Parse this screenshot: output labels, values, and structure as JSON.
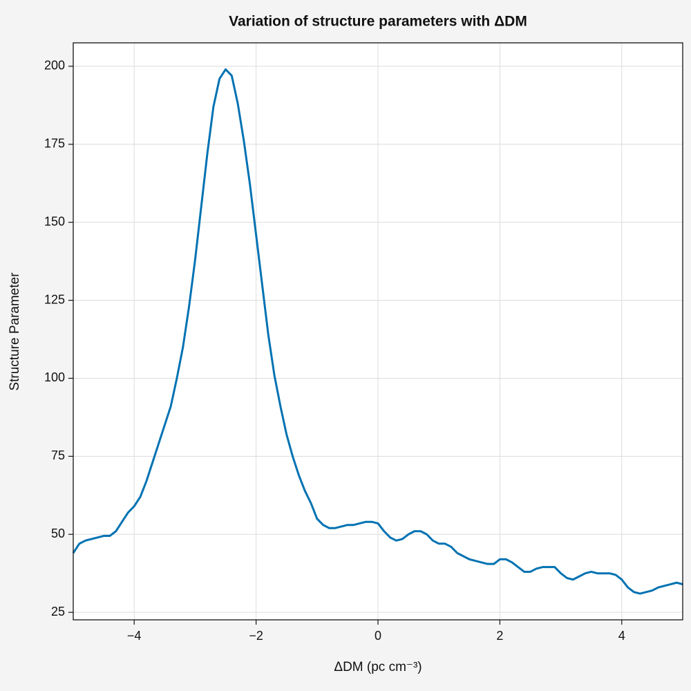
{
  "chart_data": {
    "type": "line",
    "title": "Variation of structure parameters with ΔDM",
    "xlabel": "ΔDM (pc cm⁻³)",
    "ylabel": "Structure Parameter",
    "x": [
      -5,
      -4.9,
      -4.8,
      -4.7,
      -4.6,
      -4.5,
      -4.4,
      -4.3,
      -4.2,
      -4.1,
      -4,
      -3.9,
      -3.8,
      -3.7,
      -3.6,
      -3.5,
      -3.4,
      -3.3,
      -3.2,
      -3.1,
      -3,
      -2.9,
      -2.8,
      -2.7,
      -2.6,
      -2.5,
      -2.4,
      -2.3,
      -2.2,
      -2.1,
      -2,
      -1.9,
      -1.8,
      -1.7,
      -1.6,
      -1.5,
      -1.4,
      -1.3,
      -1.2,
      -1.1,
      -1,
      -0.9,
      -0.8,
      -0.7,
      -0.6,
      -0.5,
      -0.4,
      -0.3,
      -0.2,
      -0.1,
      0,
      0.1,
      0.2,
      0.3,
      0.4,
      0.5,
      0.6,
      0.7,
      0.8,
      0.9,
      1,
      1.1,
      1.2,
      1.3,
      1.4,
      1.5,
      1.6,
      1.7,
      1.8,
      1.9,
      2,
      2.1,
      2.2,
      2.3,
      2.4,
      2.5,
      2.6,
      2.7,
      2.8,
      2.9,
      3,
      3.1,
      3.2,
      3.3,
      3.4,
      3.5,
      3.6,
      3.7,
      3.8,
      3.9,
      4,
      4.1,
      4.2,
      4.3,
      4.4,
      4.5,
      4.6,
      4.7,
      4.8,
      4.9,
      5
    ],
    "series": [
      {
        "color": "#0072b2",
        "values": [
          44,
          47,
          48,
          48.5,
          49,
          49.5,
          49.5,
          51,
          54,
          57,
          59,
          62,
          67,
          73,
          79,
          85,
          91,
          100,
          110,
          123,
          138,
          155,
          172,
          187,
          196,
          199,
          197,
          188,
          176,
          162,
          146,
          130,
          114,
          101,
          91,
          82,
          75,
          69,
          64,
          60,
          55,
          53,
          52,
          52,
          52.5,
          53,
          53,
          53.5,
          54,
          54,
          53.5,
          51,
          49,
          48,
          48.5,
          50,
          51,
          51,
          50,
          48,
          47,
          47,
          46,
          44,
          43,
          42,
          41.5,
          41,
          40.5,
          40.5,
          42,
          42,
          41,
          39.5,
          38,
          38,
          39,
          39.5,
          39.5,
          39.5,
          37.5,
          36,
          35.5,
          36.5,
          37.5,
          38,
          37.5,
          37.5,
          37.5,
          37,
          35.5,
          33,
          31.5,
          31,
          31.5,
          32,
          33,
          33.5,
          34,
          34.5,
          34
        ]
      }
    ],
    "xlim": [
      -5,
      5
    ],
    "ylim": [
      22.6,
      207.5
    ],
    "xticks": [
      {
        "value": -4,
        "label": "−4"
      },
      {
        "value": -2,
        "label": "−2"
      },
      0,
      2,
      4
    ],
    "yticks": [
      25,
      50,
      75,
      100,
      125,
      150,
      175,
      200
    ],
    "grid": true
  }
}
